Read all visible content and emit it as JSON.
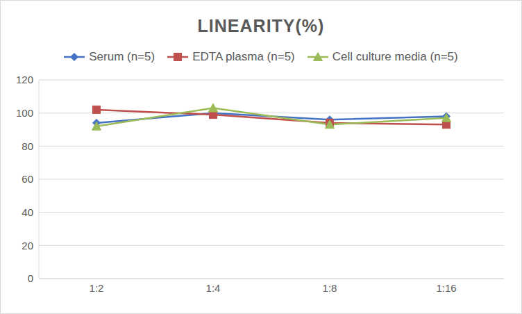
{
  "chart_data": {
    "type": "line",
    "title": "LINEARITY(%)",
    "categories": [
      "1:2",
      "1:4",
      "1:8",
      "1:16"
    ],
    "series": [
      {
        "name": "Serum (n=5)",
        "color": "#4472c4",
        "marker": "diamond",
        "values": [
          94,
          100,
          96,
          98
        ]
      },
      {
        "name": "EDTA plasma (n=5)",
        "color": "#c0504d",
        "marker": "square",
        "values": [
          102,
          99,
          94,
          93
        ]
      },
      {
        "name": "Cell culture media (n=5)",
        "color": "#9bbb59",
        "marker": "triangle",
        "values": [
          92,
          103,
          93,
          97
        ]
      }
    ],
    "ylim": [
      0,
      120
    ],
    "yticks": [
      0,
      20,
      40,
      60,
      80,
      100,
      120
    ],
    "grid": true,
    "legend": "top"
  }
}
